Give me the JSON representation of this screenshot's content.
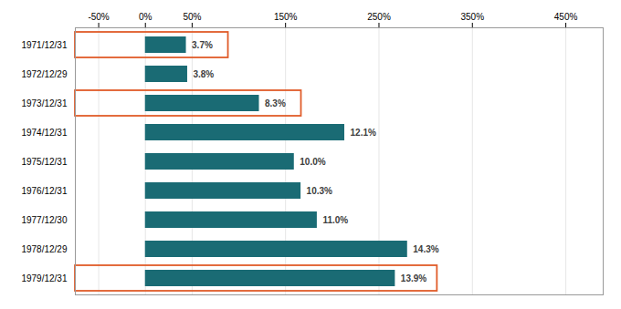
{
  "chart_data": {
    "type": "bar",
    "orientation": "horizontal",
    "categories": [
      "1971/12/31",
      "1972/12/29",
      "1973/12/31",
      "1974/12/31",
      "1975/12/31",
      "1976/12/31",
      "1977/12/30",
      "1978/12/29",
      "1979/12/31"
    ],
    "values": [
      43.81,
      45.2,
      121.97,
      213.37,
      159.37,
      166.54,
      183.94,
      280.59,
      267.48
    ],
    "annualized": [
      {
        "value": 3.7,
        "label": "3.7%"
      },
      {
        "value": 3.8,
        "label": "3.8%"
      },
      {
        "value": 8.3,
        "label": "8.3%"
      },
      {
        "value": 12.1,
        "label": "12.1%"
      },
      {
        "value": 10.0,
        "label": "10.0%"
      },
      {
        "value": 10.3,
        "label": "10.3%"
      },
      {
        "value": 11.0,
        "label": "11.0%"
      },
      {
        "value": 14.3,
        "label": "14.3%"
      },
      {
        "value": 13.9,
        "label": "13.9%"
      }
    ],
    "color": "#1a6b74",
    "boxed": [
      "1971/12/31",
      "1973/12/31",
      "1979/12/31"
    ],
    "box_color": "#e05c2a",
    "xlim": [
      -75,
      490
    ],
    "xticks": [
      {
        "value": -50,
        "label": "-50%"
      },
      {
        "value": 0,
        "label": "0%"
      },
      {
        "value": 50,
        "label": "50%"
      },
      {
        "value": 150,
        "label": "150%"
      },
      {
        "value": 250,
        "label": "250%"
      },
      {
        "value": 350,
        "label": "350%"
      },
      {
        "value": 450,
        "label": "450%"
      }
    ],
    "grid": true
  }
}
